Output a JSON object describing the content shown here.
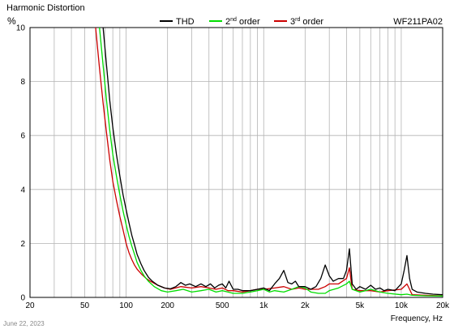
{
  "chart_data": {
    "type": "line",
    "title": "Harmonic Distortion",
    "ylabel": "%",
    "xlabel": "Frequency, Hz",
    "model": "WF211PA02",
    "date": "June 22, 2023",
    "x_scale": "log",
    "xlim": [
      20,
      20000
    ],
    "ylim": [
      0,
      10
    ],
    "grid": true,
    "legend_position": "top",
    "x_ticks": [
      {
        "value": 20,
        "label": "20"
      },
      {
        "value": 50,
        "label": "50"
      },
      {
        "value": 100,
        "label": "100"
      },
      {
        "value": 200,
        "label": "200"
      },
      {
        "value": 500,
        "label": "500"
      },
      {
        "value": 1000,
        "label": "1k"
      },
      {
        "value": 2000,
        "label": "2k"
      },
      {
        "value": 5000,
        "label": "5k"
      },
      {
        "value": 10000,
        "label": "10k"
      },
      {
        "value": 20000,
        "label": "20k"
      }
    ],
    "y_ticks": [
      {
        "value": 0,
        "label": "0"
      },
      {
        "value": 2,
        "label": "2"
      },
      {
        "value": 4,
        "label": "4"
      },
      {
        "value": 6,
        "label": "6"
      },
      {
        "value": 8,
        "label": "8"
      },
      {
        "value": 10,
        "label": "10"
      }
    ],
    "series": [
      {
        "name": "THD",
        "legend_main": "THD",
        "legend_sup": "",
        "legend_rest": "",
        "color": "#000000",
        "points": [
          [
            68,
            10
          ],
          [
            72,
            8.6
          ],
          [
            76,
            7.3
          ],
          [
            80,
            6.3
          ],
          [
            85,
            5.3
          ],
          [
            90,
            4.5
          ],
          [
            95,
            3.8
          ],
          [
            100,
            3.25
          ],
          [
            105,
            2.75
          ],
          [
            110,
            2.3
          ],
          [
            115,
            1.95
          ],
          [
            120,
            1.6
          ],
          [
            128,
            1.25
          ],
          [
            135,
            1.0
          ],
          [
            145,
            0.75
          ],
          [
            155,
            0.6
          ],
          [
            170,
            0.45
          ],
          [
            190,
            0.35
          ],
          [
            210,
            0.32
          ],
          [
            230,
            0.4
          ],
          [
            250,
            0.55
          ],
          [
            270,
            0.45
          ],
          [
            290,
            0.5
          ],
          [
            320,
            0.4
          ],
          [
            350,
            0.5
          ],
          [
            380,
            0.4
          ],
          [
            410,
            0.5
          ],
          [
            440,
            0.35
          ],
          [
            470,
            0.45
          ],
          [
            500,
            0.5
          ],
          [
            530,
            0.35
          ],
          [
            560,
            0.6
          ],
          [
            600,
            0.3
          ],
          [
            650,
            0.3
          ],
          [
            700,
            0.25
          ],
          [
            800,
            0.25
          ],
          [
            900,
            0.3
          ],
          [
            1000,
            0.35
          ],
          [
            1100,
            0.25
          ],
          [
            1200,
            0.5
          ],
          [
            1300,
            0.7
          ],
          [
            1400,
            1.0
          ],
          [
            1500,
            0.55
          ],
          [
            1600,
            0.5
          ],
          [
            1700,
            0.6
          ],
          [
            1800,
            0.4
          ],
          [
            2000,
            0.4
          ],
          [
            2200,
            0.3
          ],
          [
            2400,
            0.4
          ],
          [
            2600,
            0.7
          ],
          [
            2800,
            1.2
          ],
          [
            3000,
            0.8
          ],
          [
            3200,
            0.6
          ],
          [
            3500,
            0.7
          ],
          [
            3800,
            0.7
          ],
          [
            4000,
            1.0
          ],
          [
            4200,
            1.8
          ],
          [
            4400,
            0.5
          ],
          [
            4700,
            0.3
          ],
          [
            5000,
            0.4
          ],
          [
            5500,
            0.3
          ],
          [
            6000,
            0.45
          ],
          [
            6500,
            0.3
          ],
          [
            7000,
            0.35
          ],
          [
            7500,
            0.25
          ],
          [
            8000,
            0.3
          ],
          [
            9000,
            0.25
          ],
          [
            10000,
            0.5
          ],
          [
            10500,
            1.0
          ],
          [
            11000,
            1.55
          ],
          [
            11500,
            0.7
          ],
          [
            12000,
            0.3
          ],
          [
            13000,
            0.2
          ],
          [
            15000,
            0.15
          ],
          [
            17000,
            0.12
          ],
          [
            20000,
            0.1
          ]
        ]
      },
      {
        "name": "2nd order",
        "legend_main": "2",
        "legend_sup": "nd",
        "legend_rest": " order",
        "color": "#00dd00",
        "points": [
          [
            64,
            10
          ],
          [
            68,
            8.6
          ],
          [
            72,
            7.3
          ],
          [
            76,
            6.2
          ],
          [
            80,
            5.3
          ],
          [
            85,
            4.5
          ],
          [
            90,
            3.8
          ],
          [
            95,
            3.2
          ],
          [
            100,
            2.7
          ],
          [
            105,
            2.25
          ],
          [
            110,
            1.9
          ],
          [
            115,
            1.6
          ],
          [
            120,
            1.3
          ],
          [
            128,
            1.0
          ],
          [
            135,
            0.8
          ],
          [
            145,
            0.6
          ],
          [
            160,
            0.4
          ],
          [
            180,
            0.25
          ],
          [
            200,
            0.2
          ],
          [
            230,
            0.25
          ],
          [
            260,
            0.3
          ],
          [
            300,
            0.2
          ],
          [
            350,
            0.25
          ],
          [
            400,
            0.3
          ],
          [
            450,
            0.2
          ],
          [
            500,
            0.25
          ],
          [
            550,
            0.2
          ],
          [
            600,
            0.15
          ],
          [
            700,
            0.15
          ],
          [
            800,
            0.2
          ],
          [
            900,
            0.25
          ],
          [
            1000,
            0.3
          ],
          [
            1100,
            0.2
          ],
          [
            1200,
            0.25
          ],
          [
            1400,
            0.2
          ],
          [
            1600,
            0.3
          ],
          [
            1800,
            0.4
          ],
          [
            2000,
            0.35
          ],
          [
            2200,
            0.2
          ],
          [
            2500,
            0.15
          ],
          [
            2800,
            0.15
          ],
          [
            3000,
            0.25
          ],
          [
            3500,
            0.35
          ],
          [
            4000,
            0.5
          ],
          [
            4200,
            0.6
          ],
          [
            4400,
            0.3
          ],
          [
            5000,
            0.2
          ],
          [
            5500,
            0.25
          ],
          [
            6000,
            0.3
          ],
          [
            7000,
            0.2
          ],
          [
            8000,
            0.15
          ],
          [
            10000,
            0.1
          ],
          [
            11000,
            0.12
          ],
          [
            12000,
            0.08
          ],
          [
            15000,
            0.06
          ],
          [
            20000,
            0.05
          ]
        ]
      },
      {
        "name": "3rd order",
        "legend_main": "3",
        "legend_sup": "rd",
        "legend_rest": " order",
        "color": "#cc0000",
        "points": [
          [
            60,
            10
          ],
          [
            64,
            8.5
          ],
          [
            68,
            7.2
          ],
          [
            72,
            6.1
          ],
          [
            76,
            5.1
          ],
          [
            80,
            4.3
          ],
          [
            85,
            3.6
          ],
          [
            90,
            3.0
          ],
          [
            95,
            2.5
          ],
          [
            100,
            2.0
          ],
          [
            105,
            1.65
          ],
          [
            110,
            1.4
          ],
          [
            115,
            1.2
          ],
          [
            120,
            1.05
          ],
          [
            130,
            0.85
          ],
          [
            140,
            0.7
          ],
          [
            150,
            0.6
          ],
          [
            170,
            0.45
          ],
          [
            190,
            0.35
          ],
          [
            210,
            0.3
          ],
          [
            250,
            0.4
          ],
          [
            300,
            0.35
          ],
          [
            350,
            0.4
          ],
          [
            400,
            0.35
          ],
          [
            450,
            0.3
          ],
          [
            500,
            0.35
          ],
          [
            550,
            0.25
          ],
          [
            600,
            0.25
          ],
          [
            700,
            0.2
          ],
          [
            800,
            0.25
          ],
          [
            900,
            0.3
          ],
          [
            1000,
            0.3
          ],
          [
            1200,
            0.35
          ],
          [
            1400,
            0.4
          ],
          [
            1600,
            0.3
          ],
          [
            1800,
            0.35
          ],
          [
            2000,
            0.3
          ],
          [
            2500,
            0.3
          ],
          [
            2800,
            0.4
          ],
          [
            3000,
            0.5
          ],
          [
            3500,
            0.5
          ],
          [
            4000,
            0.7
          ],
          [
            4200,
            1.1
          ],
          [
            4400,
            0.3
          ],
          [
            5000,
            0.25
          ],
          [
            6000,
            0.25
          ],
          [
            7000,
            0.2
          ],
          [
            8000,
            0.25
          ],
          [
            10000,
            0.3
          ],
          [
            11000,
            0.5
          ],
          [
            11500,
            0.3
          ],
          [
            12000,
            0.1
          ],
          [
            15000,
            0.08
          ],
          [
            20000,
            0.06
          ]
        ]
      }
    ]
  }
}
